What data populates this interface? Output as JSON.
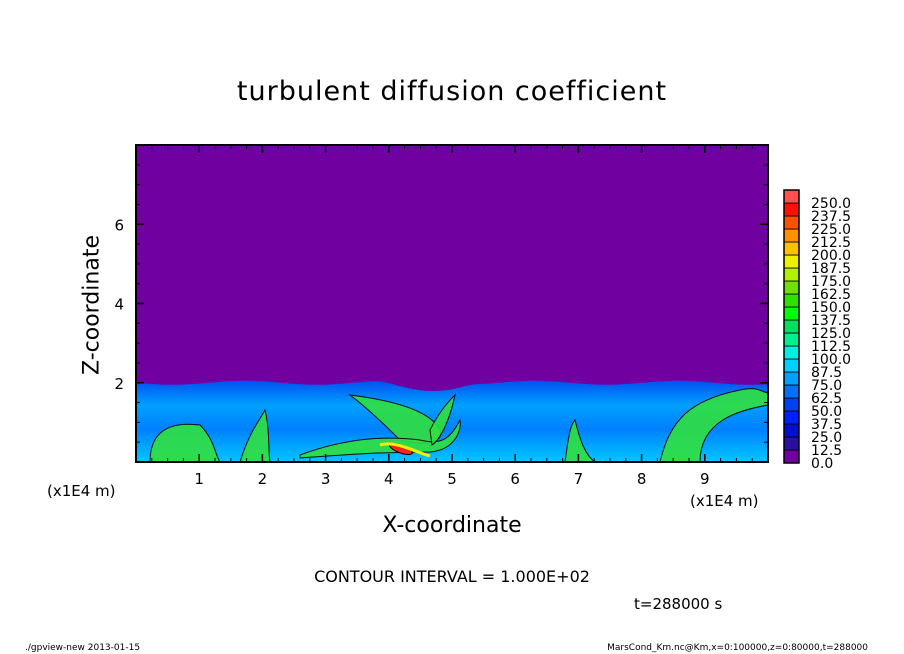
{
  "chart_data": {
    "type": "heatmap",
    "title": "turbulent diffusion coefficient",
    "xlabel": "X-coordinate",
    "ylabel": "Z-coordinate",
    "x_unit": "(x1E4 m)",
    "xlim": [
      0,
      10
    ],
    "ylim": [
      0,
      8
    ],
    "x_ticks": [
      1,
      2,
      3,
      4,
      5,
      6,
      7,
      8,
      9
    ],
    "y_ticks": [
      2,
      4,
      6
    ],
    "contour_interval": "CONTOUR INTERVAL = 1.000E+02",
    "time_label": "t=288000 s",
    "colorbar": {
      "levels": [
        "0.0",
        "12.5",
        "25.0",
        "37.5",
        "50.0",
        "62.5",
        "75.0",
        "87.5",
        "100.0",
        "112.5",
        "125.0",
        "137.5",
        "150.0",
        "162.5",
        "175.0",
        "187.5",
        "200.0",
        "212.5",
        "225.0",
        "237.5",
        "250.0"
      ],
      "colors": [
        "#7000a0",
        "#2a10a0",
        "#0010d0",
        "#0020ff",
        "#0040f0",
        "#0070ff",
        "#00a0ff",
        "#00d0ff",
        "#00f0e0",
        "#00f090",
        "#00e060",
        "#00ff00",
        "#30e000",
        "#70e000",
        "#b0f000",
        "#f0f000",
        "#ffc000",
        "#ff9000",
        "#ff5000",
        "#ff1000",
        "#ff5050"
      ]
    },
    "field_summary": {
      "background_color": "#7000a0",
      "turbulent_layer_top": 2
    }
  },
  "footer": {
    "left": "./gpview-new  2013-01-15",
    "right": "MarsCond_Km.nc@Km,x=0:100000,z=0:80000,t=288000"
  }
}
